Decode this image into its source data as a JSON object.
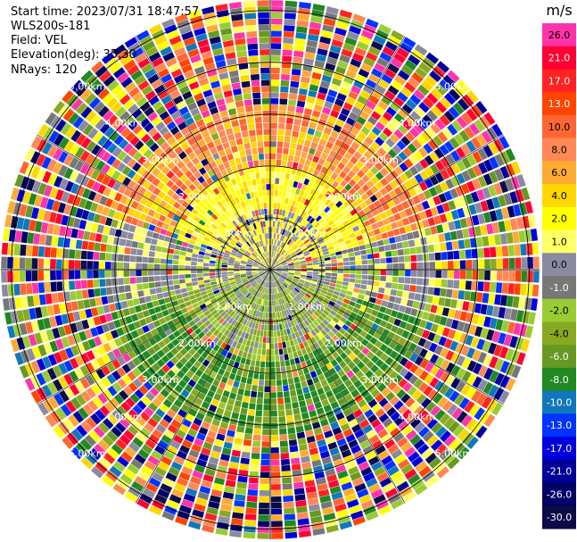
{
  "header": {
    "start_time": "Start time: 2023/07/31 18:47:57",
    "instrument": "WLS200s-181",
    "field": "Field: VEL",
    "elevation": "Elevation(deg): 35.30",
    "nrays": "NRays: 120"
  },
  "chart_data": {
    "type": "heatmap",
    "projection": "polar-ppi",
    "colorbar": {
      "unit": "m/s",
      "ticks": [
        "26.0",
        "21.0",
        "17.0",
        "13.0",
        "10.0",
        "8.0",
        "6.0",
        "4.0",
        "2.0",
        "1.0",
        "0.0",
        "-1.0",
        "-2.0",
        "-4.0",
        "-6.0",
        "-8.0",
        "-10.0",
        "-13.0",
        "-17.0",
        "-21.0",
        "-26.0",
        "-30.0"
      ],
      "colors": [
        "#ff33aa",
        "#ff0033",
        "#ff2222",
        "#ff4400",
        "#ff6633",
        "#ff8855",
        "#ffaa33",
        "#ffd700",
        "#ffff00",
        "#ffff66",
        "#8a8aa0",
        "#777777",
        "#99cc33",
        "#88aa22",
        "#669922",
        "#228822",
        "#1177bb",
        "#0033ff",
        "#0000dd",
        "#000099",
        "#000066",
        "#0b0b4a"
      ]
    },
    "range_rings": [
      {
        "label": "1.00km"
      },
      {
        "label": "2.00km"
      },
      {
        "label": "3.00km"
      },
      {
        "label": "4.00km"
      },
      {
        "label": "5.00km"
      }
    ],
    "nrays": 120,
    "range_gates": 44,
    "pattern_description_free": true
  },
  "colors": {
    "grid": "#000000",
    "ring_label": "#ffffff"
  }
}
